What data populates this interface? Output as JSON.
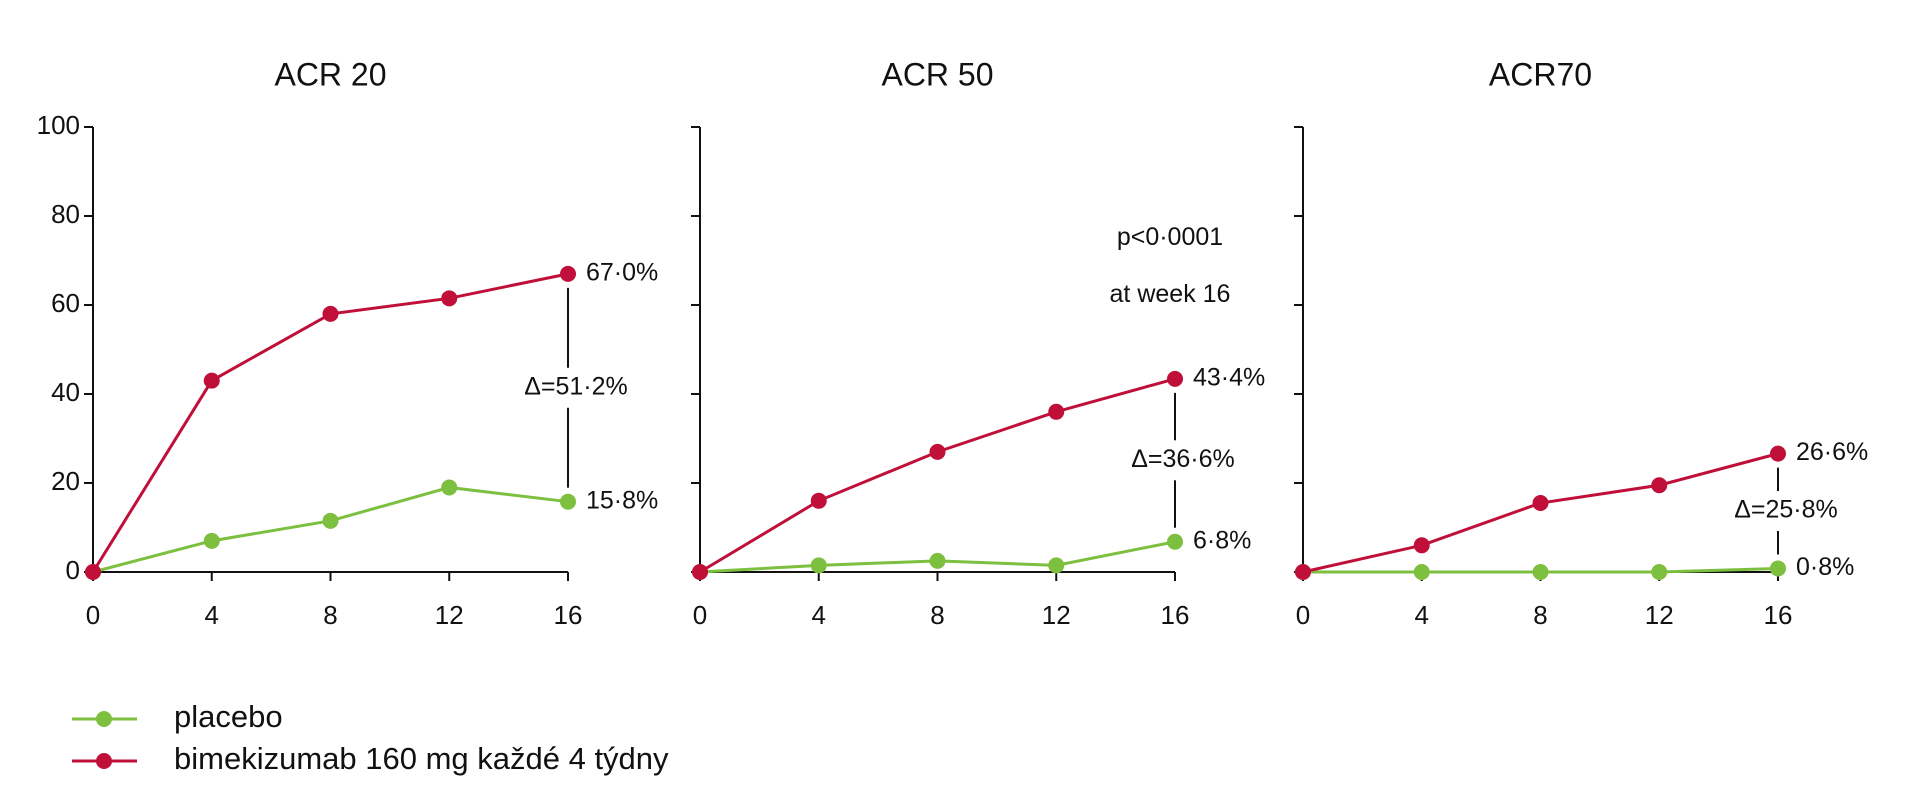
{
  "chart_data": [
    {
      "type": "line",
      "title": "ACR 20",
      "x": [
        0,
        4,
        8,
        12,
        16
      ],
      "xlim": [
        0,
        16
      ],
      "xticks": [
        0,
        4,
        8,
        12,
        16
      ],
      "ylim": [
        0,
        100
      ],
      "yticks": [
        0,
        20,
        40,
        60,
        80,
        100
      ],
      "ytick_labels": true,
      "series": [
        {
          "name": "placebo",
          "color": "#7dbf3f",
          "values": [
            0,
            7,
            11.5,
            19,
            15.8
          ],
          "value_labels": [
            null,
            null,
            null,
            null,
            "15·8%"
          ]
        },
        {
          "name": "bimekizumab 160 mg každé 4 týdny",
          "color": "#c0103a",
          "values": [
            0,
            43,
            58,
            61.5,
            67.0
          ],
          "value_labels": [
            null,
            null,
            null,
            null,
            "67·0%"
          ]
        }
      ],
      "difference_label": "Δ=51·2%"
    },
    {
      "type": "line",
      "title": "ACR 50",
      "x": [
        0,
        4,
        8,
        12,
        16
      ],
      "xlim": [
        0,
        16
      ],
      "xticks": [
        0,
        4,
        8,
        12,
        16
      ],
      "ylim": [
        0,
        100
      ],
      "yticks": [
        0,
        20,
        40,
        60,
        80,
        100
      ],
      "ytick_labels": false,
      "series": [
        {
          "name": "placebo",
          "color": "#7dbf3f",
          "values": [
            0,
            1.5,
            2.5,
            1.5,
            6.8
          ],
          "value_labels": [
            null,
            null,
            null,
            null,
            "6·8%"
          ]
        },
        {
          "name": "bimekizumab 160 mg každé 4 týdny",
          "color": "#c0103a",
          "values": [
            0,
            16,
            27,
            36,
            43.4
          ],
          "value_labels": [
            null,
            null,
            null,
            null,
            "43·4%"
          ]
        }
      ],
      "difference_label": "Δ=36·6%",
      "annotations": [
        "p<0·0001",
        "at week 16"
      ]
    },
    {
      "type": "line",
      "title": "ACR70",
      "x": [
        0,
        4,
        8,
        12,
        16
      ],
      "xlim": [
        0,
        16
      ],
      "xticks": [
        0,
        4,
        8,
        12,
        16
      ],
      "ylim": [
        0,
        100
      ],
      "yticks": [
        0,
        20,
        40,
        60,
        80,
        100
      ],
      "ytick_labels": false,
      "series": [
        {
          "name": "placebo",
          "color": "#7dbf3f",
          "values": [
            0,
            0,
            0,
            0,
            0.8
          ],
          "value_labels": [
            null,
            null,
            null,
            null,
            "0·8%"
          ]
        },
        {
          "name": "bimekizumab 160 mg každé 4 týdny",
          "color": "#c0103a",
          "values": [
            0,
            6,
            15.5,
            19.5,
            26.6
          ],
          "value_labels": [
            null,
            null,
            null,
            null,
            "26·6%"
          ]
        }
      ],
      "difference_label": "Δ=25·8%"
    }
  ]
}
